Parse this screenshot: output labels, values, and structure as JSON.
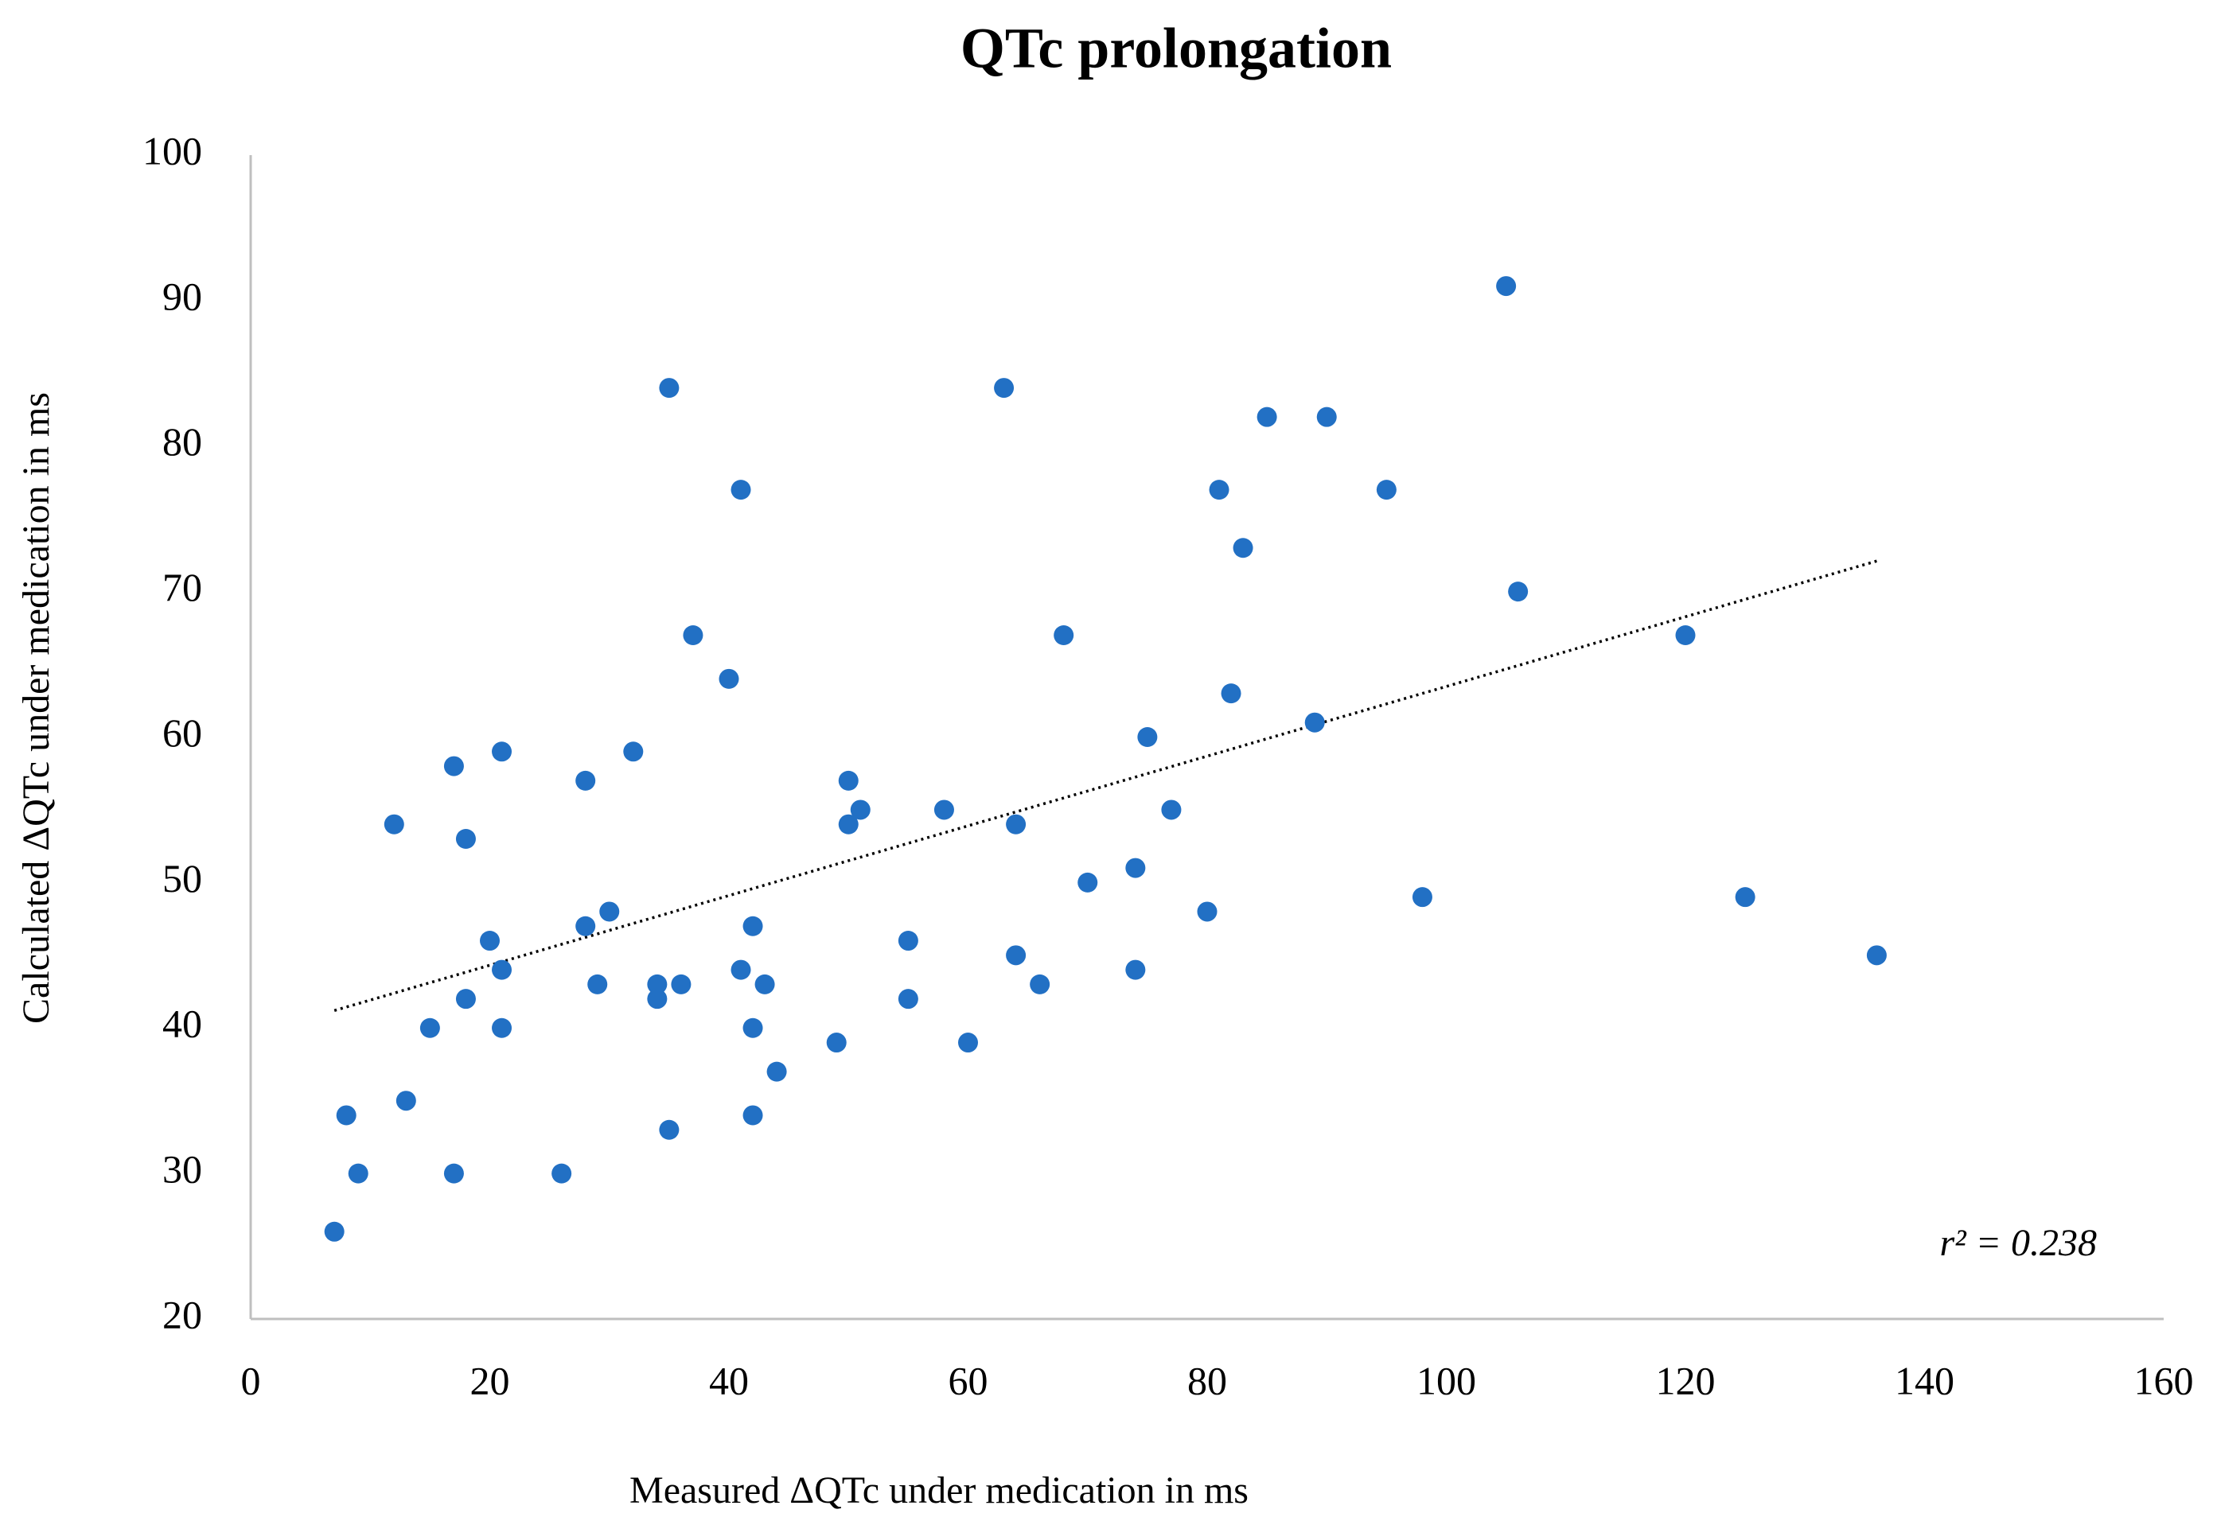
{
  "chart_data": {
    "type": "scatter",
    "title": "QTc prolongation",
    "x_label": "Measured ΔQTc under medication in ms",
    "y_label": "Calculated ΔQTc under medication in ms",
    "annotation": "r² = 0.238",
    "series": [
      {
        "color": "#2270c4",
        "x": [
          7,
          8,
          9,
          12,
          13,
          15,
          17,
          17,
          18,
          18,
          20,
          21,
          21,
          21,
          26,
          28,
          28,
          29,
          30,
          32,
          34,
          34,
          35,
          35,
          36,
          37,
          40,
          41,
          41,
          42,
          42,
          42,
          43,
          44,
          49,
          50,
          50,
          51,
          55,
          55,
          58,
          60,
          63,
          64,
          64,
          66,
          68,
          70,
          74,
          74,
          75,
          77,
          80,
          81,
          82,
          83,
          85,
          89,
          90,
          95,
          98,
          105,
          106,
          120,
          125,
          136
        ],
        "values": [
          26,
          34,
          30,
          54,
          35,
          40,
          58,
          30,
          53,
          42,
          46,
          59,
          44,
          40,
          30,
          57,
          47,
          43,
          48,
          59,
          43,
          42,
          84,
          33,
          43,
          67,
          64,
          77,
          44,
          47,
          40,
          34,
          43,
          37,
          39,
          57,
          54,
          55,
          46,
          42,
          55,
          39,
          84,
          54,
          45,
          43,
          67,
          50,
          51,
          44,
          60,
          55,
          48,
          77,
          63,
          73,
          82,
          61,
          82,
          77,
          49,
          91,
          70,
          67,
          49,
          45
        ]
      }
    ],
    "trendline": {
      "x": [
        7,
        136
      ],
      "y": [
        41.2,
        72.1
      ]
    },
    "xlim": [
      0,
      160
    ],
    "xticks": [
      0,
      20,
      40,
      60,
      80,
      100,
      120,
      140,
      160
    ],
    "ylim": [
      20,
      100
    ],
    "yticks": [
      20,
      30,
      40,
      50,
      60,
      70,
      80,
      90,
      100
    ],
    "grid": false
  }
}
